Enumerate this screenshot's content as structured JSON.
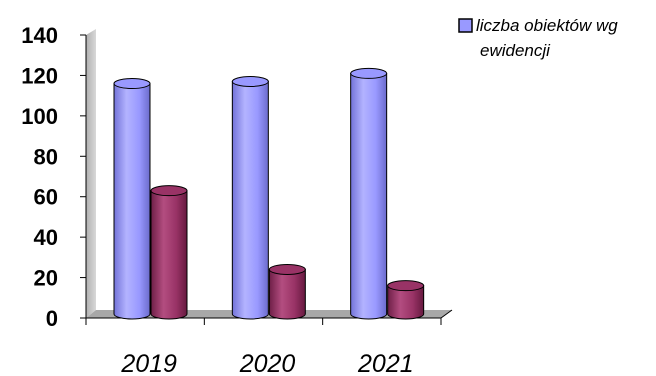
{
  "chart_data": {
    "type": "bar",
    "style": "3d-cylinder",
    "categories": [
      "2019",
      "2020",
      "2021"
    ],
    "series": [
      {
        "name": "liczba obiektów wg ewidencji",
        "values": [
          116,
          117,
          121
        ],
        "color": "#9999ff"
      },
      {
        "values": [
          63,
          24,
          16
        ],
        "color": "#993366"
      }
    ],
    "y_ticks": [
      0,
      20,
      40,
      60,
      80,
      100,
      120,
      140
    ],
    "ylim": [
      0,
      140
    ],
    "legend": {
      "position": "top-right",
      "lines": [
        "liczba obiektów wg",
        "ewidencji"
      ]
    },
    "grid": false
  }
}
